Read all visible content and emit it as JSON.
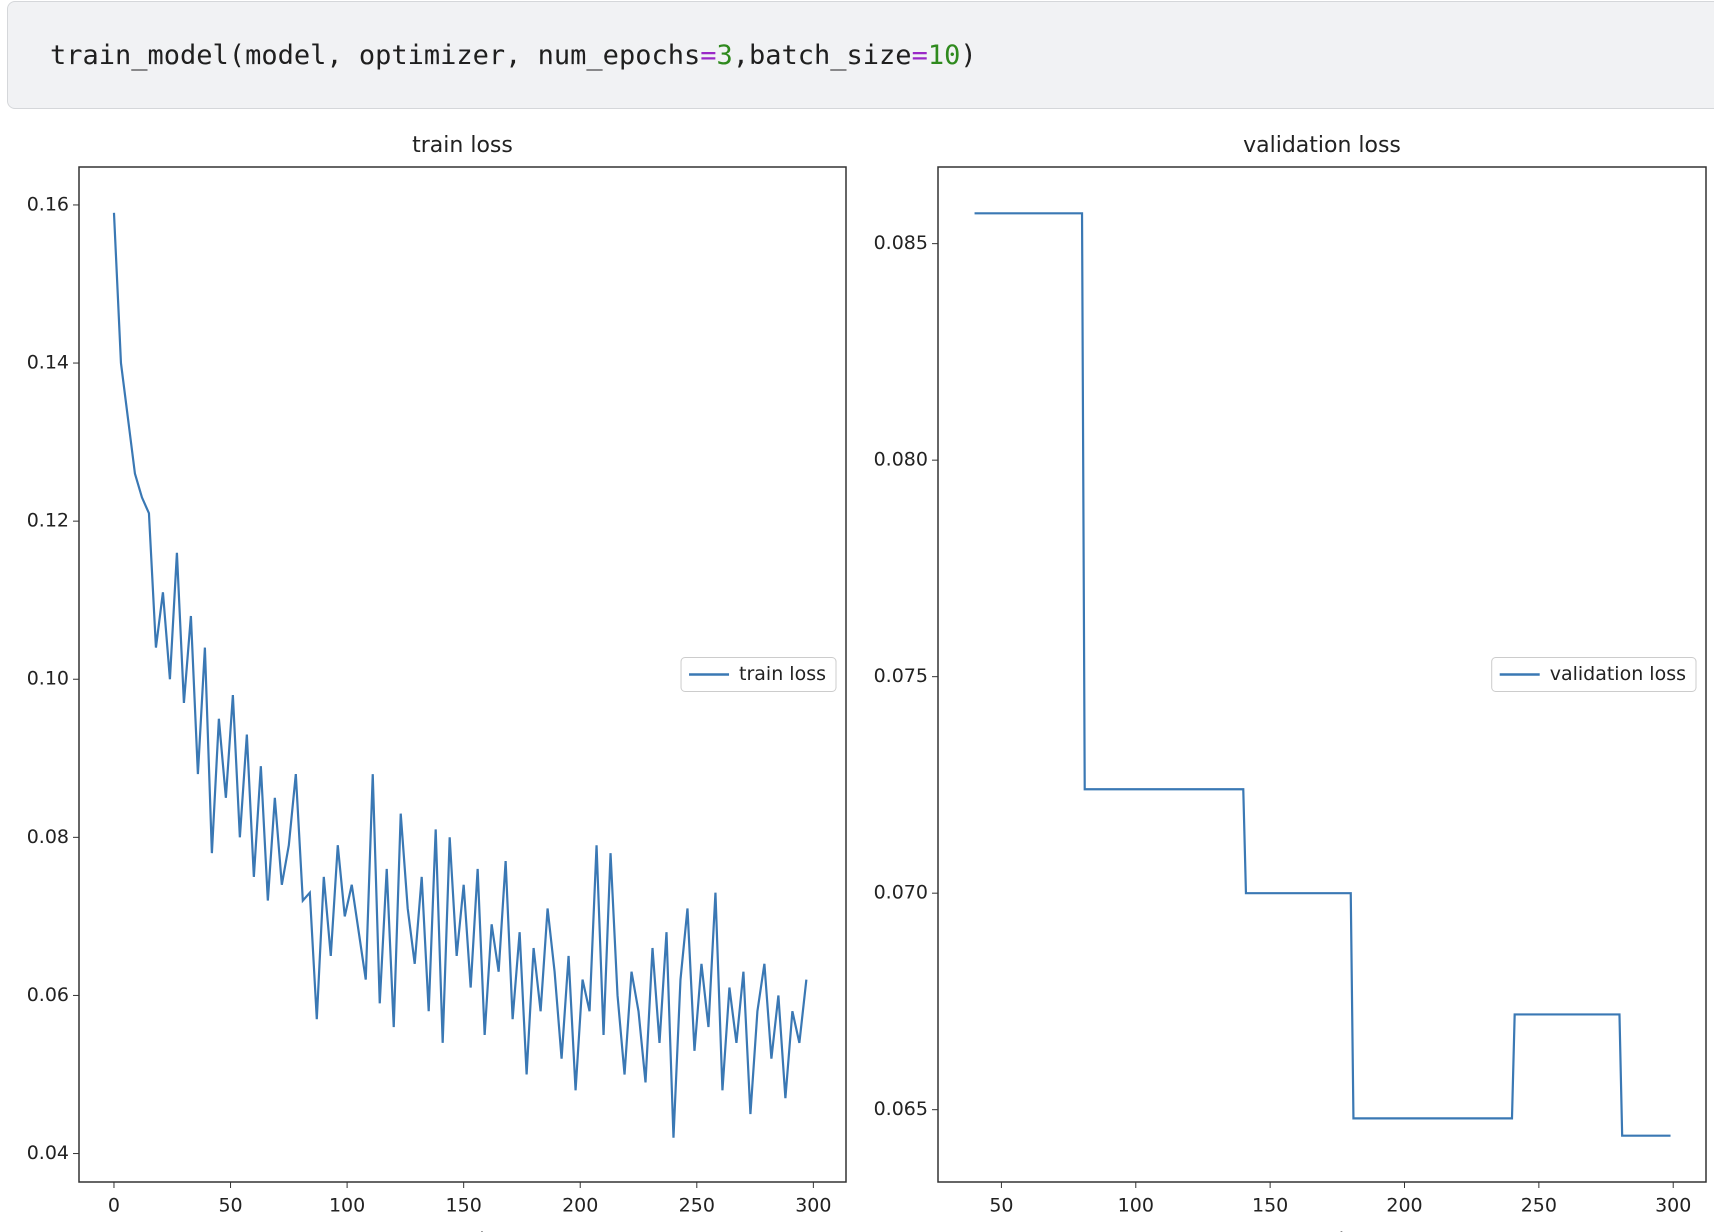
{
  "code": {
    "parts": [
      "train_model(model, optimizer, num_epochs",
      "=",
      "3",
      ",batch_size",
      "=",
      "10",
      ")"
    ]
  },
  "chart_data": [
    {
      "type": "line",
      "title": "train loss",
      "xlabel": "epoch",
      "legend": "center right",
      "x": [
        0,
        3,
        6,
        9,
        12,
        15,
        18,
        21,
        24,
        27,
        30,
        33,
        36,
        39,
        42,
        45,
        48,
        51,
        54,
        57,
        60,
        63,
        66,
        69,
        72,
        75,
        78,
        81,
        84,
        87,
        90,
        93,
        96,
        99,
        102,
        105,
        108,
        111,
        114,
        117,
        120,
        123,
        126,
        129,
        132,
        135,
        138,
        141,
        144,
        147,
        150,
        153,
        156,
        159,
        162,
        165,
        168,
        171,
        174,
        177,
        180,
        183,
        186,
        189,
        192,
        195,
        198,
        201,
        204,
        207,
        210,
        213,
        216,
        219,
        222,
        225,
        228,
        231,
        234,
        237,
        240,
        243,
        246,
        249,
        252,
        255,
        258,
        261,
        264,
        267,
        270,
        273,
        276,
        279,
        282,
        285,
        288,
        291,
        294,
        297
      ],
      "series": [
        {
          "name": "train loss",
          "color": "#3a78b4",
          "values": [
            0.159,
            0.14,
            0.133,
            0.126,
            0.123,
            0.121,
            0.104,
            0.111,
            0.1,
            0.116,
            0.097,
            0.108,
            0.088,
            0.104,
            0.078,
            0.095,
            0.085,
            0.098,
            0.08,
            0.093,
            0.075,
            0.089,
            0.072,
            0.085,
            0.074,
            0.079,
            0.088,
            0.072,
            0.073,
            0.057,
            0.075,
            0.065,
            0.079,
            0.07,
            0.074,
            0.068,
            0.062,
            0.088,
            0.059,
            0.076,
            0.056,
            0.083,
            0.071,
            0.064,
            0.075,
            0.058,
            0.081,
            0.054,
            0.08,
            0.065,
            0.074,
            0.061,
            0.076,
            0.055,
            0.069,
            0.063,
            0.077,
            0.057,
            0.068,
            0.05,
            0.066,
            0.058,
            0.071,
            0.063,
            0.052,
            0.065,
            0.048,
            0.062,
            0.058,
            0.079,
            0.055,
            0.078,
            0.06,
            0.05,
            0.063,
            0.058,
            0.049,
            0.066,
            0.054,
            0.068,
            0.042,
            0.062,
            0.071,
            0.053,
            0.064,
            0.056,
            0.073,
            0.048,
            0.061,
            0.054,
            0.063,
            0.045,
            0.058,
            0.064,
            0.052,
            0.06,
            0.047,
            0.058,
            0.054,
            0.062
          ]
        }
      ],
      "xlim": [
        -15,
        314
      ],
      "xticks": [
        0,
        50,
        100,
        150,
        200,
        250,
        300
      ],
      "ylim": [
        0.0364,
        0.1648
      ],
      "yticks": [
        0.04,
        0.06,
        0.08,
        {
          "value": 0.1,
          "label": "0.10"
        },
        0.12,
        0.14,
        0.16
      ]
    },
    {
      "type": "line",
      "title": "validation loss",
      "xlabel": "epoch",
      "legend": "center right",
      "x": [
        40,
        80,
        81,
        140,
        141,
        180,
        181,
        240,
        241,
        280,
        281,
        299
      ],
      "series": [
        {
          "name": "validation loss",
          "color": "#3a78b4",
          "values": [
            0.0857,
            0.0857,
            0.0724,
            0.0724,
            0.07,
            0.07,
            0.0648,
            0.0648,
            0.0672,
            0.0672,
            0.0644,
            0.0644
          ]
        }
      ],
      "xlim": [
        26.4,
        312.2
      ],
      "xticks": [
        50,
        100,
        150,
        200,
        250,
        300
      ],
      "ylim": [
        0.06333,
        0.08677
      ],
      "yticks": [
        0.065,
        {
          "value": 0.07,
          "label": "0.070"
        },
        0.075,
        {
          "value": 0.08,
          "label": "0.080"
        },
        0.085
      ]
    }
  ]
}
